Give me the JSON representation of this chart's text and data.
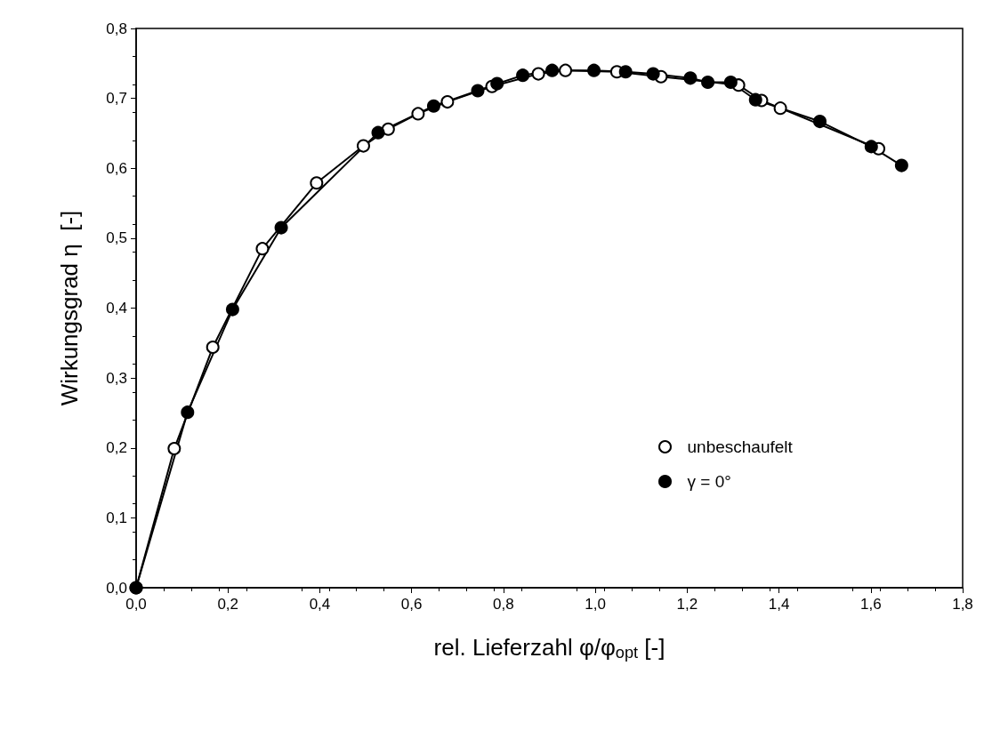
{
  "chart_data": {
    "type": "line",
    "xlabel": "rel. Lieferzahl φ/φ$_{opt}$ [-]",
    "ylabel": "Wirkungsgrad η  [-]",
    "xlim": [
      0,
      1.8
    ],
    "ylim": [
      0,
      0.8
    ],
    "xticks": [
      {
        "value": 0,
        "label": "0,0"
      },
      {
        "value": 0.2,
        "label": "0,2"
      },
      {
        "value": 0.4,
        "label": "0,4"
      },
      {
        "value": 0.6,
        "label": "0,6"
      },
      {
        "value": 0.8,
        "label": "0,8"
      },
      {
        "value": 1,
        "label": "1,0"
      },
      {
        "value": 1.2,
        "label": "1,2"
      },
      {
        "value": 1.4,
        "label": "1,4"
      },
      {
        "value": 1.6,
        "label": "1,6"
      },
      {
        "value": 1.8,
        "label": "1,8"
      }
    ],
    "yticks": [
      {
        "value": 0,
        "label": "0,0"
      },
      {
        "value": 0.1,
        "label": "0,1"
      },
      {
        "value": 0.2,
        "label": "0,2"
      },
      {
        "value": 0.3,
        "label": "0,3"
      },
      {
        "value": 0.4,
        "label": "0,4"
      },
      {
        "value": 0.5,
        "label": "0,5"
      },
      {
        "value": 0.6,
        "label": "0,6"
      },
      {
        "value": 0.7,
        "label": "0,7"
      },
      {
        "value": 0.8,
        "label": "0,8"
      }
    ],
    "grid": false,
    "legend": "bottom right",
    "marker": "circle",
    "line_style": "solid",
    "series": [
      {
        "name": "unbeschaufelt",
        "color": "#ffffff",
        "x": [
          0,
          0.083,
          0.167,
          0.275,
          0.393,
          0.495,
          0.549,
          0.614,
          0.678,
          0.775,
          0.876,
          0.935,
          1.047,
          1.143,
          1.312,
          1.362,
          1.403,
          1.617
        ],
        "values": [
          0,
          0.199,
          0.344,
          0.485,
          0.579,
          0.632,
          0.656,
          0.678,
          0.695,
          0.717,
          0.735,
          0.74,
          0.738,
          0.731,
          0.719,
          0.697,
          0.686,
          0.628
        ]
      },
      {
        "name": "γ = 0°",
        "color": "#000000",
        "x": [
          0,
          0.112,
          0.21,
          0.316,
          0.527,
          0.648,
          0.744,
          0.786,
          0.842,
          0.906,
          0.997,
          1.066,
          1.126,
          1.207,
          1.245,
          1.295,
          1.349,
          1.489,
          1.601,
          1.667
        ],
        "values": [
          0,
          0.251,
          0.398,
          0.515,
          0.651,
          0.689,
          0.711,
          0.721,
          0.733,
          0.74,
          0.74,
          0.738,
          0.735,
          0.729,
          0.723,
          0.723,
          0.698,
          0.667,
          0.631,
          0.604
        ]
      }
    ]
  }
}
